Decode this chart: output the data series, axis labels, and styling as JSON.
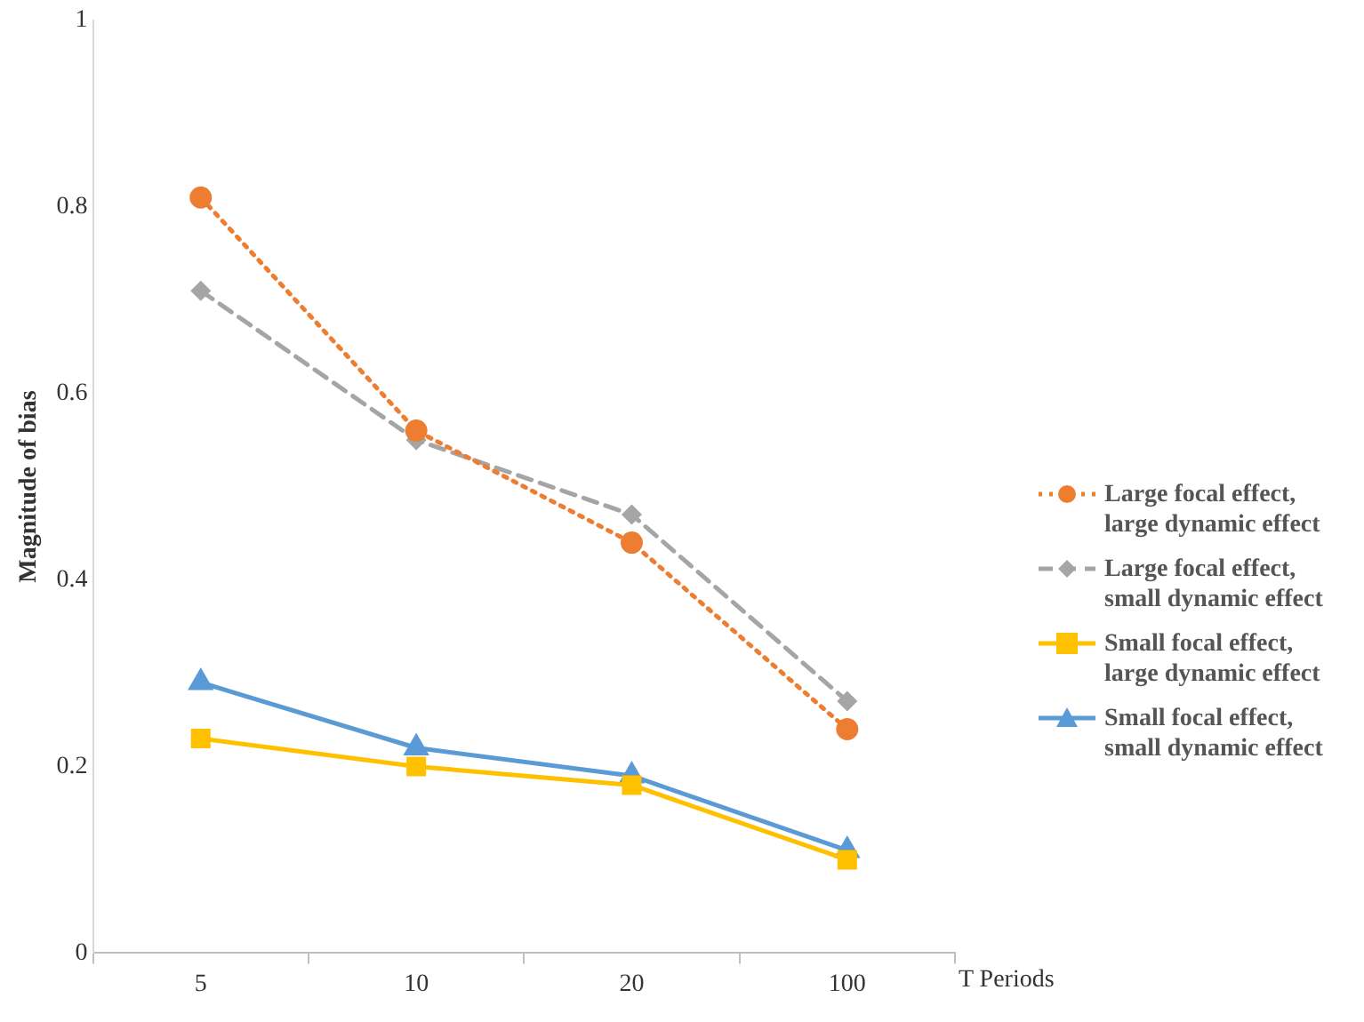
{
  "chart_data": {
    "type": "line",
    "xlabel": "T Periods",
    "ylabel": "Magnitude of bias",
    "categories": [
      "5",
      "10",
      "20",
      "100"
    ],
    "ylim": [
      0,
      1
    ],
    "yticks": [
      0,
      0.2,
      0.4,
      0.6,
      0.8,
      1
    ],
    "grid": false,
    "legend": "right",
    "series": [
      {
        "name": "Large focal effect, large dynamic effect",
        "color": "#ed7d31",
        "marker": "circle",
        "line_style": "dotted",
        "values": [
          0.81,
          0.56,
          0.44,
          0.24
        ]
      },
      {
        "name": "Large focal effect, small dynamic effect",
        "color": "#a5a5a5",
        "marker": "diamond",
        "line_style": "dashed",
        "values": [
          0.71,
          0.55,
          0.47,
          0.27
        ]
      },
      {
        "name": "Small focal effect, large dynamic effect",
        "color": "#ffc000",
        "marker": "square",
        "line_style": "solid",
        "values": [
          0.23,
          0.2,
          0.18,
          0.1
        ]
      },
      {
        "name": "Small focal effect, small dynamic effect",
        "color": "#5b9bd5",
        "marker": "triangle",
        "line_style": "solid",
        "values": [
          0.29,
          0.22,
          0.19,
          0.11
        ]
      }
    ]
  }
}
